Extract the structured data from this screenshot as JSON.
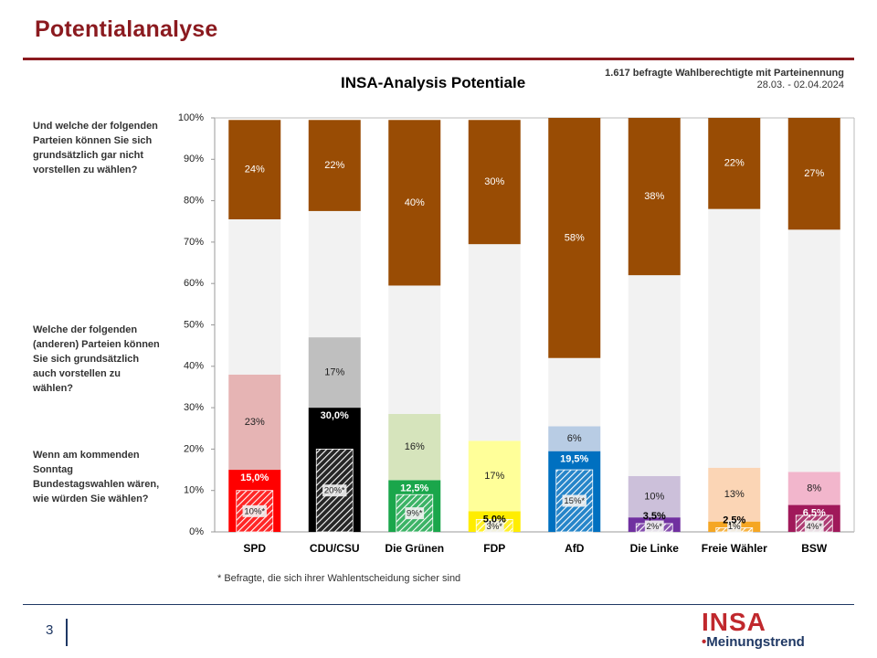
{
  "header": {
    "title": "Potentialanalyse"
  },
  "meta": {
    "sample": "1.617 befragte Wahlberechtigte mit Parteinennung",
    "period": "28.03. - 02.04.2024"
  },
  "questions": {
    "q_not": "Und welche der folgenden Parteien können Sie sich grundsätzlich  gar nicht vorstellen zu wählen?",
    "q_could": "Welche der folgenden (anderen) Parteien können Sie sich grundsätzlich  auch vorstellen zu wählen?",
    "q_vote": "Wenn am kommenden Sonntag Bundestagswahlen wären, wie würden Sie wählen?"
  },
  "footnote": "* Befragte, die sich ihrer Wahlentscheidung sicher sind",
  "footer": {
    "page": "3",
    "logo_main": "INSA",
    "logo_sub": "Meinungstrend"
  },
  "chart_data": {
    "type": "bar",
    "stacked": true,
    "title": "INSA-Analysis Potentiale",
    "ylim": [
      0,
      100
    ],
    "yticks": [
      "0%",
      "10%",
      "20%",
      "30%",
      "40%",
      "50%",
      "60%",
      "70%",
      "80%",
      "90%",
      "100%"
    ],
    "categories": [
      "SPD",
      "CDU/CSU",
      "Die Grünen",
      "FDP",
      "AfD",
      "Die Linke",
      "Freie Wähler",
      "BSW"
    ],
    "series": [
      {
        "values": [
          15.0,
          30.0,
          12.5,
          5.0,
          19.5,
          3.5,
          2.5,
          6.5
        ],
        "labels": [
          "15,0%",
          "30,0%",
          "12,5%",
          "5,0%",
          "19,5%",
          "3,5%",
          "2,5%",
          "6,5%"
        ]
      },
      {
        "values": [
          23,
          17,
          16,
          17,
          6,
          10,
          13,
          8
        ],
        "labels": [
          "23%",
          "17%",
          "16%",
          "17%",
          "6%",
          "10%",
          "13%",
          "8%"
        ]
      },
      {
        "values": [
          37.5,
          30.5,
          31,
          47.5,
          16.5,
          48.5,
          62.5,
          58.5
        ]
      },
      {
        "values": [
          24,
          22,
          40,
          30,
          58,
          38,
          22,
          27
        ],
        "labels": [
          "24%",
          "22%",
          "40%",
          "30%",
          "58%",
          "38%",
          "22%",
          "27%"
        ]
      }
    ],
    "sure_voters": {
      "values": [
        10,
        20,
        9,
        3,
        15,
        2,
        1,
        4
      ],
      "labels": [
        "10%*",
        "20%*",
        "9%*",
        "3%*",
        "15%*",
        "2%*",
        "1%",
        "4%*"
      ]
    },
    "colors": {
      "vote": [
        "#FF0000",
        "#000000",
        "#1AA64B",
        "#FFED00",
        "#0070C0",
        "#7030A0",
        "#F5A623",
        "#A0195A"
      ],
      "could": [
        "#E6B4B4",
        "#BFBFBF",
        "#D6E4BC",
        "#FFFF99",
        "#B8CCE4",
        "#CCC0DA",
        "#FBD5B5",
        "#F2B6CC"
      ],
      "neutral": "#F2F2F2",
      "not": "#994C04"
    }
  }
}
